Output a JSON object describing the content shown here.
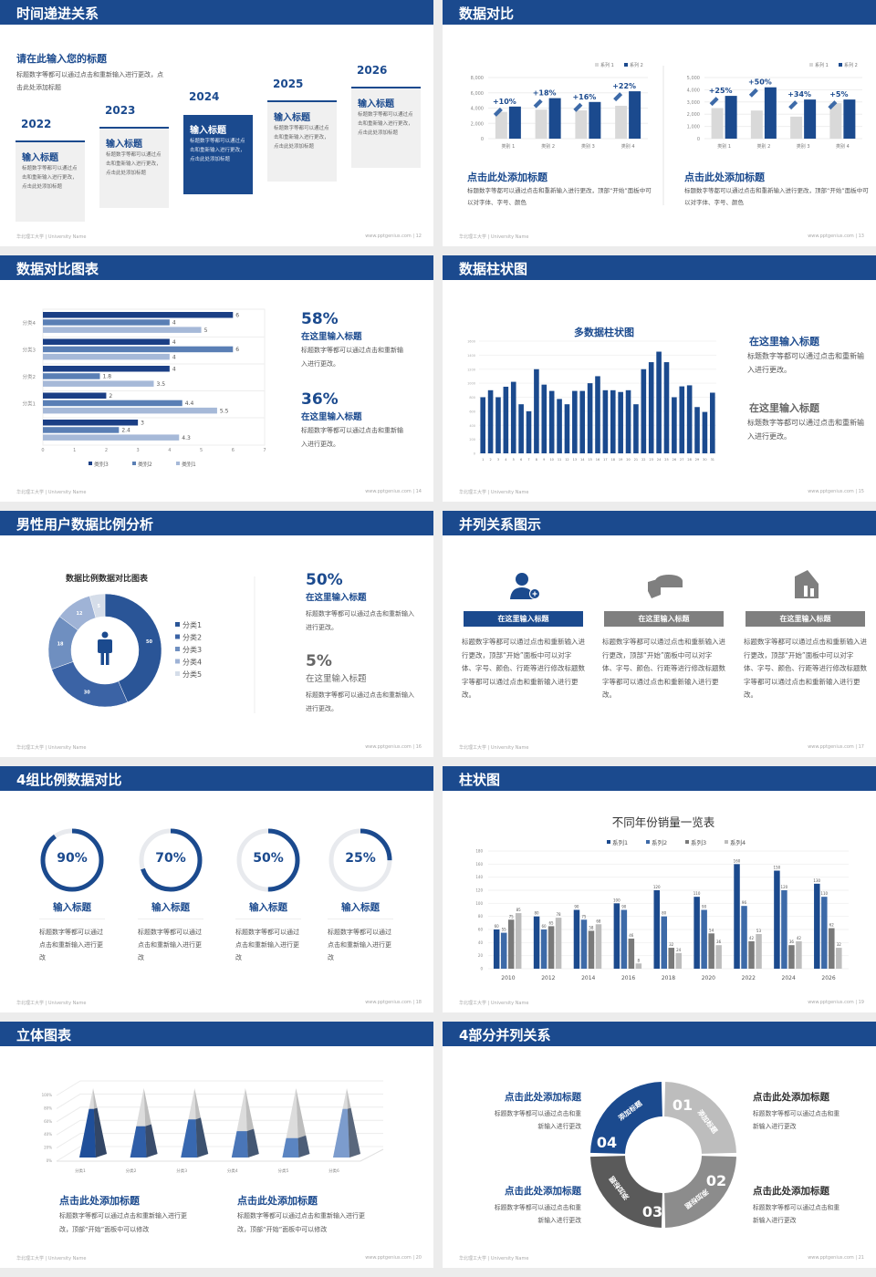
{
  "footer": {
    "left": "华北理工大学 | University Name",
    "site": "www.pptgenius.com"
  },
  "colors": {
    "primary": "#1b4a8e",
    "mid_blue": "#3d6aa8",
    "gray": "#7a7a7a",
    "light_gray": "#bdbdbd",
    "card_bg": "#f0f0f0"
  },
  "slides": [
    {
      "title": "时间递进关系",
      "page": "12",
      "subtitle": "请在此输入您的标题",
      "desc": "标题数字等都可以通过点击和重新输入进行更改，点击此处添加标题",
      "steps": [
        {
          "year": "2022",
          "title": "输入标题",
          "text": "标题数字等都可以通过点击和重新输入进行更改，点击此处添加标题"
        },
        {
          "year": "2023",
          "title": "输入标题",
          "text": "标题数字等都可以通过点击和重新输入进行更改，点击此处添加标题"
        },
        {
          "year": "2024",
          "title": "输入标题",
          "text": "标题数字等都可以通过点击和重新输入进行更改，点击此处添加标题",
          "highlighted": true
        },
        {
          "year": "2025",
          "title": "输入标题",
          "text": "标题数字等都可以通过点击和重新输入进行更改，点击此处添加标题"
        },
        {
          "year": "2026",
          "title": "输入标题",
          "text": "标题数字等都可以通过点击和重新输入进行更改，点击此处添加标题"
        }
      ]
    },
    {
      "title": "数据对比",
      "page": "13",
      "panels": [
        {
          "heading": "点击此处添加标题",
          "text": "标题数字等都可以通过点击和重新输入进行更改，顶部“开始”面板中可以对字体、字号、颜色"
        },
        {
          "heading": "点击此处添加标题",
          "text": "标题数字等都可以通过点击和重新输入进行更改，顶部“开始”面板中可以对字体、字号、颜色"
        }
      ]
    },
    {
      "title": "数据对比图表",
      "page": "14",
      "stats": [
        {
          "value": "58%",
          "heading": "在这里输入标题",
          "text": "标题数字等都可以通过点击和重新输入进行更改。"
        },
        {
          "value": "36%",
          "heading": "在这里输入标题",
          "text": "标题数字等都可以通过点击和重新输入进行更改。"
        }
      ]
    },
    {
      "title": "数据柱状图",
      "page": "15",
      "notes": [
        {
          "heading": "在这里输入标题",
          "text": "标题数字等都可以通过点击和重新输入进行更改。"
        },
        {
          "heading": "在这里输入标题",
          "text": "标题数字等都可以通过点击和重新输入进行更改。"
        }
      ]
    },
    {
      "title": "男性用户数据比例分析",
      "page": "16",
      "stats": [
        {
          "value": "50%",
          "heading": "在这里输入标题",
          "text": "标题数字等都可以通过点击和重新输入进行更改。"
        },
        {
          "value": "5%",
          "heading": "在这里输入标题",
          "text": "标题数字等都可以通过点击和重新输入进行更改。"
        }
      ]
    },
    {
      "title": "并列关系图示",
      "page": "17",
      "items": [
        {
          "icon": "user-add-icon",
          "heading": "在这里输入标题",
          "text": "标题数字等都可以通过点击和重新输入进行更改，顶部“开始”面板中可以对字体、字号、颜色、行距等进行修改标题数字等都可以通过点击和重新输入进行更改。",
          "active": true
        },
        {
          "icon": "pie-chart-3d-icon",
          "heading": "在这里输入标题",
          "text": "标题数字等都可以通过点击和重新输入进行更改，顶部“开始”面板中可以对字体、字号、颜色、行距等进行修改标题数字等都可以通过点击和重新输入进行更改。"
        },
        {
          "icon": "building-chart-icon",
          "heading": "在这里输入标题",
          "text": "标题数字等都可以通过点击和重新输入进行更改，顶部“开始”面板中可以对字体、字号、颜色、行距等进行修改标题数字等都可以通过点击和重新输入进行更改。"
        }
      ]
    },
    {
      "title": "4组比例数据对比",
      "page": "18",
      "items": [
        {
          "value": "90%",
          "heading": "输入标题",
          "text": "标题数字等都可以通过点击和重新输入进行更改"
        },
        {
          "value": "70%",
          "heading": "输入标题",
          "text": "标题数字等都可以通过点击和重新输入进行更改"
        },
        {
          "value": "50%",
          "heading": "输入标题",
          "text": "标题数字等都可以通过点击和重新输入进行更改"
        },
        {
          "value": "25%",
          "heading": "输入标题",
          "text": "标题数字等都可以通过点击和重新输入进行更改"
        }
      ]
    },
    {
      "title": "柱状图",
      "page": "19"
    },
    {
      "title": "立体图表",
      "page": "20",
      "panels": [
        {
          "heading": "点击此处添加标题",
          "text": "标题数字等都可以通过点击和重新输入进行更改，顶部“开始”面板中可以修改"
        },
        {
          "heading": "点击此处添加标题",
          "text": "标题数字等都可以通过点击和重新输入进行更改，顶部“开始”面板中可以修改"
        }
      ]
    },
    {
      "title": "4部分并列关系",
      "page": "21",
      "segments": [
        {
          "number": "01",
          "label": "添加标题",
          "color": "#bdbdbd"
        },
        {
          "number": "02",
          "label": "添加标题",
          "color": "#8c8c8c"
        },
        {
          "number": "03",
          "label": "添加标题",
          "color": "#5a5a5a"
        },
        {
          "number": "04",
          "label": "添加标题",
          "color": "#1b4a8e"
        }
      ],
      "blocks": [
        {
          "heading": "点击此处添加标题",
          "text": "标题数字等都可以通过点击和重新输入进行更改"
        },
        {
          "heading": "点击此处添加标题",
          "text": "标题数字等都可以通过点击和重新输入进行更改"
        },
        {
          "heading": "点击此处添加标题",
          "text": "标题数字等都可以通过点击和重新输入进行更改"
        },
        {
          "heading": "点击此处添加标题",
          "text": "标题数字等都可以通过点击和重新输入进行更改"
        }
      ]
    }
  ],
  "chart_data": [
    {
      "type": "bar",
      "categories": [
        "类别 1",
        "类别 2",
        "类别 3",
        "类别 4"
      ],
      "ylim": [
        0,
        8000
      ],
      "yticks": [
        "0",
        "2,000",
        "4,000",
        "6,000",
        "8,000"
      ],
      "series": [
        {
          "name": "系列 1",
          "values": [
            3500,
            3800,
            3700,
            4300
          ],
          "color": "#d9d9d9"
        },
        {
          "name": "系列 2",
          "values": [
            4200,
            5300,
            4800,
            6200
          ],
          "color": "#1b4a8e"
        }
      ],
      "annotations": [
        "+10%",
        "+18%",
        "+16%",
        "+22%"
      ],
      "legend": "top-right",
      "grid": true
    },
    {
      "type": "bar",
      "categories": [
        "类别 1",
        "类别 2",
        "类别 3",
        "类别 4"
      ],
      "ylim": [
        0,
        5000
      ],
      "yticks": [
        "0",
        "1,000",
        "2,000",
        "3,000",
        "4,000",
        "5,000"
      ],
      "series": [
        {
          "name": "系列 1",
          "values": [
            2500,
            2300,
            1800,
            2900
          ],
          "color": "#d9d9d9"
        },
        {
          "name": "系列 2",
          "values": [
            3500,
            4200,
            3200,
            3200
          ],
          "color": "#1b4a8e"
        }
      ],
      "annotations": [
        "+25%",
        "+50%",
        "+34%",
        "+5%"
      ],
      "legend": "top-right",
      "grid": true
    },
    {
      "type": "bar",
      "orientation": "horizontal",
      "categories": [
        "分类4",
        "分类3",
        "分类2",
        "分类1",
        ""
      ],
      "xlim": [
        0,
        7
      ],
      "xticks": [
        "0",
        "1",
        "2",
        "3",
        "4",
        "5",
        "6",
        "7"
      ],
      "series": [
        {
          "name": "类别3",
          "values": [
            6,
            4,
            4,
            2,
            3
          ],
          "color": "#1b3f85"
        },
        {
          "name": "类别2",
          "values": [
            4,
            6,
            1.8,
            4.4,
            2.4
          ],
          "color": "#5a7fb5"
        },
        {
          "name": "类别1",
          "values": [
            5,
            4,
            3.5,
            5.5,
            4.3
          ],
          "color": "#a6b9d8"
        }
      ],
      "legend": "bottom",
      "grid": true
    },
    {
      "type": "bar",
      "title": "多数据柱状图",
      "categories": [
        "1",
        "2",
        "3",
        "4",
        "5",
        "6",
        "7",
        "8",
        "9",
        "10",
        "11",
        "12",
        "13",
        "14",
        "15",
        "16",
        "17",
        "18",
        "19",
        "20",
        "21",
        "22",
        "23",
        "24",
        "25",
        "26",
        "27",
        "28",
        "29",
        "30",
        "31"
      ],
      "ylim": [
        0,
        1600
      ],
      "yticks": [
        "0",
        "200",
        "400",
        "600",
        "800",
        "1000",
        "1200",
        "1400",
        "1600"
      ],
      "values": [
        800,
        900,
        800,
        950,
        1020,
        700,
        600,
        1200,
        980,
        890,
        775,
        700,
        890,
        890,
        1000,
        1100,
        900,
        900,
        875,
        900,
        700,
        1200,
        1300,
        1450,
        1300,
        800,
        955,
        970,
        660,
        590,
        865
      ],
      "color": "#1b4a8e"
    },
    {
      "type": "pie",
      "style": "donut",
      "title": "数据比例数据对比图表",
      "categories": [
        "分类1",
        "分类2",
        "分类3",
        "分类4",
        "分类5"
      ],
      "values": [
        50,
        30,
        18,
        12,
        5
      ],
      "colors": [
        "#2a5597",
        "#3b63a5",
        "#6f8fc0",
        "#9fb3d6",
        "#d5dde9"
      ],
      "legend": "right",
      "center_icon": "male-user-icon"
    },
    {
      "type": "pie",
      "style": "progress-rings",
      "values": [
        90,
        70,
        50,
        25
      ],
      "color": "#1b4a8e",
      "track_color": "#e8eaee"
    },
    {
      "type": "bar",
      "title": "不同年份销量一览表",
      "categories": [
        "2010",
        "2012",
        "2014",
        "2016",
        "2018",
        "2020",
        "2022",
        "2024",
        "2026"
      ],
      "ylim": [
        0,
        180
      ],
      "yticks": [
        "0",
        "20",
        "40",
        "60",
        "80",
        "100",
        "120",
        "140",
        "160",
        "180"
      ],
      "series": [
        {
          "name": "系列1",
          "values": [
            60,
            80,
            90,
            100,
            120,
            110,
            160,
            150,
            130
          ],
          "color": "#1b4a8e"
        },
        {
          "name": "系列2",
          "values": [
            55,
            60,
            75,
            90,
            80,
            90,
            96,
            120,
            110
          ],
          "color": "#3d6aa8"
        },
        {
          "name": "系列3",
          "values": [
            75,
            65,
            58,
            46,
            32,
            54,
            42,
            36,
            62
          ],
          "color": "#7a7a7a"
        },
        {
          "name": "系列4",
          "values": [
            85,
            78,
            68,
            8,
            24,
            36,
            53,
            42,
            32
          ],
          "color": "#bdbdbd"
        }
      ],
      "legend": "top",
      "grid": true,
      "data_labels": true
    },
    {
      "type": "bar",
      "style": "3d-pyramid",
      "categories": [
        "分类1",
        "分类2",
        "分类3",
        "分类4",
        "分类5",
        "分类6"
      ],
      "ylim": [
        0,
        100
      ],
      "yticks": [
        "0%",
        "20%",
        "40%",
        "60%",
        "80%",
        "100%"
      ],
      "values": [
        70,
        45,
        55,
        38,
        28,
        70
      ],
      "colors": [
        "#1f4f9a",
        "#2f5ea8",
        "#3868b0",
        "#4a76b8",
        "#5b85c2",
        "#7c9ccd"
      ],
      "remainder_color": "#d9d9d9"
    }
  ]
}
